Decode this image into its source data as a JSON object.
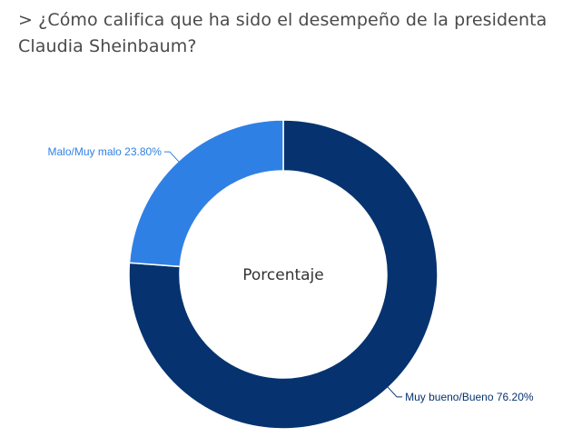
{
  "title": "> ¿Cómo califica que ha sido el desempeño de la presidenta Claudia Sheinbaum?",
  "chart_data": {
    "type": "pie",
    "variant": "donut",
    "center_label": "Porcentaje",
    "slices": [
      {
        "label": "Muy bueno/Bueno",
        "value": 76.2,
        "display": "Muy bueno/Bueno 76.20%",
        "color": "#06336f"
      },
      {
        "label": "Malo/Muy malo",
        "value": 23.8,
        "display": "Malo/Muy malo 23.80%",
        "color": "#2f80e4"
      }
    ],
    "legend": "none"
  }
}
